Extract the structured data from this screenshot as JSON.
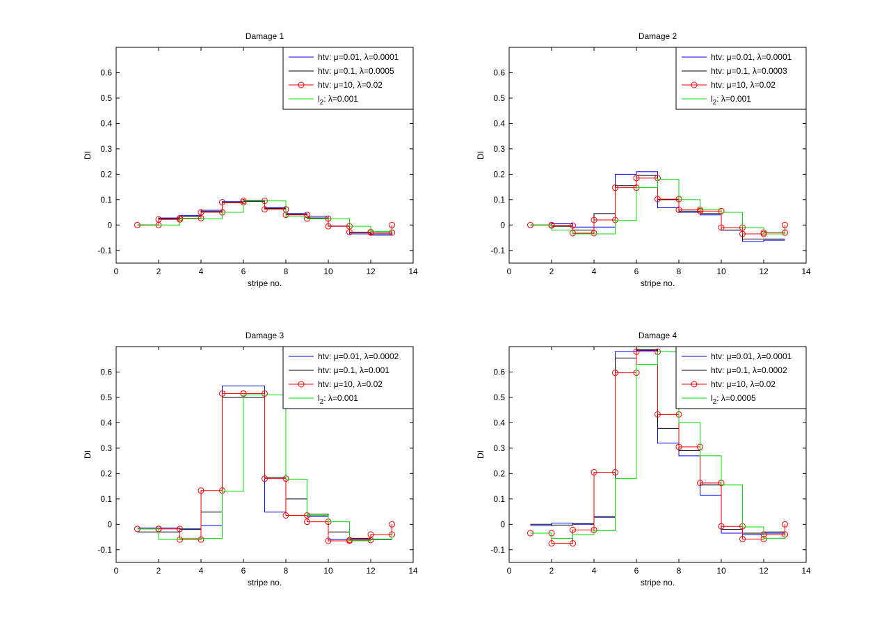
{
  "chart_data": [
    {
      "type": "line",
      "title": "Damage 1",
      "xlabel": "stripe no.",
      "ylabel": "DI",
      "xlim": [
        0,
        14
      ],
      "ylim": [
        -0.15,
        0.7
      ],
      "xticks": [
        0,
        2,
        4,
        6,
        8,
        10,
        12,
        14
      ],
      "yticks": [
        -0.1,
        0,
        0.1,
        0.2,
        0.3,
        0.4,
        0.5,
        0.6
      ],
      "legend_position": "top-right",
      "series": [
        {
          "name": "htv: μ=0.01, λ=0.0001",
          "color": "#0000ff",
          "marker": "none",
          "values": [
            0,
            0.028,
            0.038,
            0.058,
            0.092,
            0.097,
            0.068,
            0.045,
            0.035,
            -0.005,
            -0.035,
            -0.04,
            -0.028
          ]
        },
        {
          "name": "htv: μ=0.1, λ=0.0005",
          "color": "#000000",
          "marker": "none",
          "values": [
            0,
            0.025,
            0.033,
            0.054,
            0.088,
            0.093,
            0.065,
            0.042,
            0.028,
            -0.004,
            -0.03,
            -0.035,
            -0.025
          ]
        },
        {
          "name": "htv: μ=10, λ=0.02",
          "color": "#ff0000",
          "marker": "circle",
          "values": [
            0,
            0.022,
            0.027,
            0.05,
            0.09,
            0.095,
            0.062,
            0.04,
            0.025,
            -0.005,
            -0.028,
            -0.03,
            0
          ]
        },
        {
          "name": "l2: λ=0.001",
          "legend_prefix": "l",
          "legend_sub": "2",
          "legend_suffix": ": λ=0.001",
          "color": "#00dd00",
          "marker": "none",
          "values": [
            0,
            0,
            0.025,
            0.025,
            0.05,
            0.095,
            0.095,
            0.035,
            0.025,
            0.025,
            -0.005,
            -0.025,
            -0.025
          ]
        }
      ]
    },
    {
      "type": "line",
      "title": "Damage 2",
      "xlabel": "stripe no.",
      "ylabel": "DI",
      "xlim": [
        0,
        14
      ],
      "ylim": [
        -0.15,
        0.7
      ],
      "xticks": [
        0,
        2,
        4,
        6,
        8,
        10,
        12,
        14
      ],
      "yticks": [
        -0.1,
        0,
        0.1,
        0.2,
        0.3,
        0.4,
        0.5,
        0.6
      ],
      "legend_position": "top-right",
      "series": [
        {
          "name": "htv: μ=0.01, λ=0.0001",
          "color": "#0000ff",
          "marker": "none",
          "values": [
            0,
            0.005,
            -0.008,
            -0.008,
            0.2,
            0.21,
            0.068,
            0.05,
            0.04,
            -0.02,
            -0.065,
            -0.06,
            -0.06
          ]
        },
        {
          "name": "htv: μ=0.1, λ=0.0003",
          "color": "#000000",
          "marker": "none",
          "values": [
            0,
            -0.005,
            -0.02,
            0.045,
            0.155,
            0.195,
            0.1,
            0.055,
            0.045,
            -0.02,
            -0.055,
            -0.055,
            -0.055
          ]
        },
        {
          "name": "htv: μ=10, λ=0.02",
          "color": "#ff0000",
          "marker": "circle",
          "values": [
            0,
            -0.002,
            -0.032,
            0.02,
            0.147,
            0.185,
            0.102,
            0.06,
            0.055,
            -0.01,
            -0.035,
            -0.03,
            0
          ]
        },
        {
          "name": "l2: λ=0.001",
          "legend_prefix": "l",
          "legend_sub": "2",
          "legend_suffix": ": λ=0.001",
          "color": "#00dd00",
          "marker": "none",
          "values": [
            0,
            -0.02,
            -0.035,
            -0.035,
            0.018,
            0.147,
            0.18,
            0.1,
            0.06,
            0.05,
            -0.01,
            -0.035,
            -0.025
          ]
        }
      ]
    },
    {
      "type": "line",
      "title": "Damage 3",
      "xlabel": "stripe no.",
      "ylabel": "DI",
      "xlim": [
        0,
        14
      ],
      "ylim": [
        -0.15,
        0.7
      ],
      "xticks": [
        0,
        2,
        4,
        6,
        8,
        10,
        12,
        14
      ],
      "yticks": [
        -0.1,
        0,
        0.1,
        0.2,
        0.3,
        0.4,
        0.5,
        0.6
      ],
      "legend_position": "top-right",
      "series": [
        {
          "name": "htv: μ=0.01, λ=0.0002",
          "color": "#0000ff",
          "marker": "none",
          "values": [
            -0.015,
            -0.015,
            -0.02,
            -0.005,
            0.545,
            0.545,
            0.048,
            0.035,
            0.03,
            -0.06,
            -0.06,
            -0.06,
            -0.06
          ]
        },
        {
          "name": "htv: μ=0.1, λ=0.001",
          "color": "#000000",
          "marker": "none",
          "values": [
            -0.03,
            -0.03,
            -0.018,
            0.048,
            0.5,
            0.5,
            0.185,
            0.1,
            0.04,
            -0.03,
            -0.055,
            -0.058,
            -0.058
          ]
        },
        {
          "name": "htv: μ=10, λ=0.02",
          "color": "#ff0000",
          "marker": "circle",
          "values": [
            -0.018,
            -0.018,
            -0.06,
            0.133,
            0.515,
            0.515,
            0.18,
            0.035,
            0.01,
            -0.065,
            -0.062,
            -0.04,
            0
          ]
        },
        {
          "name": "l2: λ=0.001",
          "legend_prefix": "l",
          "legend_sub": "2",
          "legend_suffix": ": λ=0.001",
          "color": "#00dd00",
          "marker": "none",
          "values": [
            -0.018,
            -0.06,
            -0.055,
            -0.055,
            0.13,
            0.51,
            0.51,
            0.178,
            0.035,
            0.01,
            -0.065,
            -0.06,
            -0.04
          ]
        }
      ]
    },
    {
      "type": "line",
      "title": "Damage 4",
      "xlabel": "stripe no.",
      "ylabel": "DI",
      "xlim": [
        0,
        14
      ],
      "ylim": [
        -0.15,
        0.7
      ],
      "xticks": [
        0,
        2,
        4,
        6,
        8,
        10,
        12,
        14
      ],
      "yticks": [
        -0.1,
        0,
        0.1,
        0.2,
        0.3,
        0.4,
        0.5,
        0.6
      ],
      "legend_position": "top-right",
      "series": [
        {
          "name": "htv: μ=0.01, λ=0.0001",
          "color": "#0000ff",
          "marker": "none",
          "values": [
            -0.005,
            0.005,
            0,
            0.03,
            0.68,
            0.685,
            0.32,
            0.27,
            0.115,
            -0.035,
            -0.04,
            -0.035,
            -0.035
          ]
        },
        {
          "name": "htv: μ=0.1, λ=0.0002",
          "color": "#000000",
          "marker": "none",
          "values": [
            0,
            -0.003,
            0.003,
            0.028,
            0.655,
            0.688,
            0.378,
            0.29,
            0.155,
            -0.02,
            -0.035,
            -0.03,
            -0.03
          ]
        },
        {
          "name": "htv: μ=10, λ=0.02",
          "color": "#ff0000",
          "marker": "circle",
          "values": [
            -0.035,
            -0.075,
            -0.022,
            0.205,
            0.597,
            0.68,
            0.433,
            0.305,
            0.163,
            -0.008,
            -0.058,
            -0.04,
            0
          ]
        },
        {
          "name": "l2: λ=0.0005",
          "legend_prefix": "l",
          "legend_sub": "2",
          "legend_suffix": ": λ=0.0005",
          "color": "#00dd00",
          "marker": "none",
          "values": [
            -0.035,
            -0.055,
            -0.04,
            -0.025,
            0.18,
            0.63,
            0.68,
            0.4,
            0.27,
            0.155,
            -0.01,
            -0.055,
            -0.04
          ]
        }
      ]
    }
  ]
}
